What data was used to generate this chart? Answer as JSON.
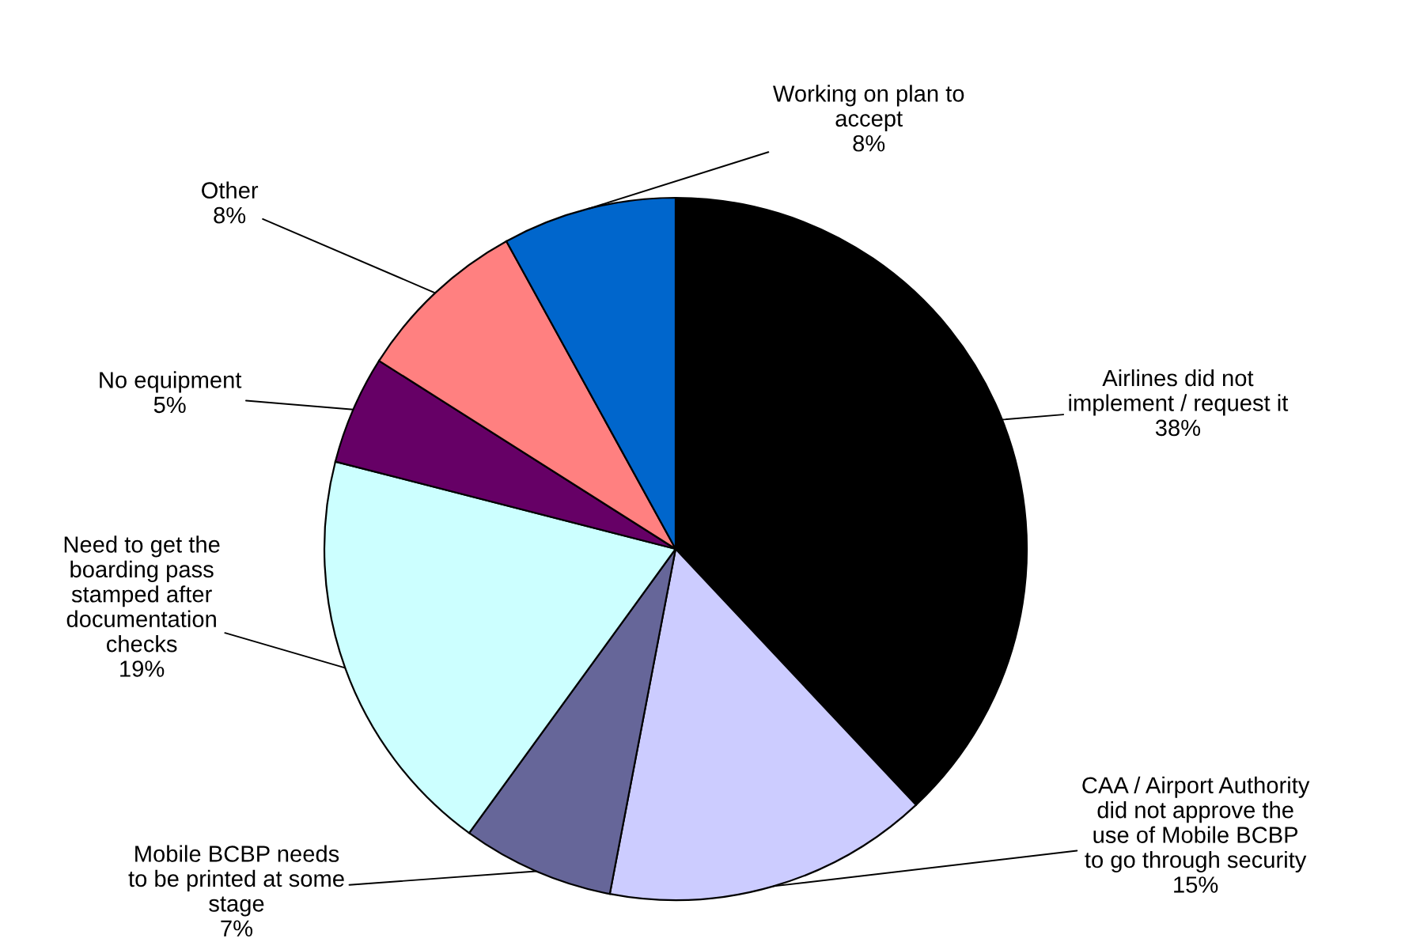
{
  "chart_data": {
    "type": "pie",
    "categories": [
      "Airlines did not\nimplement / request it",
      "CAA / Airport Authority\ndid not approve the\nuse of Mobile BCBP\nto go through security",
      "Mobile BCBP needs\nto be printed at some\nstage",
      "Need to get the\nboarding pass\nstamped after\ndocumentation\nchecks",
      "No equipment",
      "Other",
      "Working on plan to\naccept"
    ],
    "values": [
      38,
      15,
      7,
      19,
      5,
      8,
      8
    ],
    "colors": [
      "#000000",
      "#ccccff",
      "#666699",
      "#ccffff",
      "#660066",
      "#ff8080",
      "#0066cc"
    ],
    "value_labels": [
      "38%",
      "15%",
      "7%",
      "19%",
      "5%",
      "8%",
      "8%"
    ]
  }
}
